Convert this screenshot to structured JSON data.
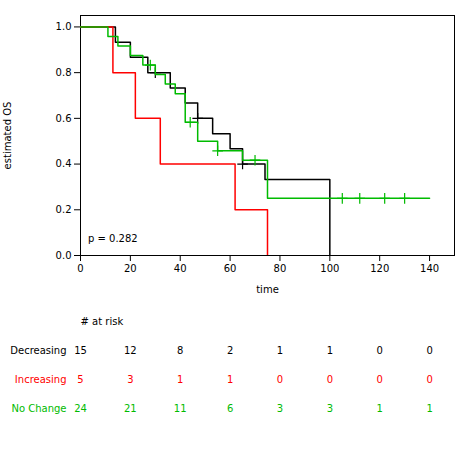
{
  "chart_data": {
    "type": "step",
    "ylabel": "estimated OS",
    "xlabel": "time",
    "xlim": [
      0,
      150
    ],
    "ylim": [
      0,
      1.05
    ],
    "xticks": [
      0,
      20,
      40,
      60,
      80,
      100,
      120,
      140
    ],
    "yticks": [
      {
        "value": 0,
        "label": "0.0"
      },
      0.2,
      0.4,
      0.6,
      0.8,
      {
        "value": 1,
        "label": "1.0"
      }
    ],
    "grid": false,
    "series": [
      {
        "name": "Decreasing",
        "color": "#000000",
        "marker": "plus",
        "x": [
          0,
          11,
          14,
          18,
          20,
          24,
          27,
          30,
          36,
          40,
          42,
          44,
          47,
          50,
          53,
          56,
          60,
          63,
          65,
          68,
          74,
          100,
          100
        ],
        "values": [
          1.0,
          1.0,
          0.933,
          0.933,
          0.867,
          0.867,
          0.8,
          0.8,
          0.733,
          0.733,
          0.667,
          0.667,
          0.6,
          0.6,
          0.533,
          0.533,
          0.467,
          0.467,
          0.4,
          0.4,
          0.333,
          0.333,
          0.0
        ],
        "censor_x": [
          30,
          47,
          65
        ],
        "censor_y": [
          0.8,
          0.6,
          0.4
        ]
      },
      {
        "name": "Increasing",
        "color": "#ff0000",
        "marker": "plus",
        "x": [
          0,
          10,
          13,
          19,
          22,
          28,
          32,
          40,
          62,
          75,
          75
        ],
        "values": [
          1.0,
          1.0,
          0.8,
          0.8,
          0.6,
          0.6,
          0.4,
          0.4,
          0.2,
          0.2,
          0.0
        ],
        "censor_x": [],
        "censor_y": []
      },
      {
        "name": "No Change",
        "color": "#00bb00",
        "marker": "plus",
        "x": [
          0,
          9,
          11,
          13,
          15,
          18,
          20,
          22,
          25,
          28,
          30,
          32,
          34,
          36,
          38,
          40,
          42,
          44,
          47,
          50,
          55,
          60,
          65,
          70,
          75,
          103,
          140
        ],
        "values": [
          1.0,
          1.0,
          0.958,
          0.958,
          0.917,
          0.917,
          0.875,
          0.875,
          0.833,
          0.833,
          0.792,
          0.792,
          0.75,
          0.75,
          0.708,
          0.708,
          0.583,
          0.583,
          0.5,
          0.5,
          0.458,
          0.458,
          0.417,
          0.417,
          0.25,
          0.25,
          0.25
        ],
        "censor_x": [
          28,
          44,
          55,
          70,
          105,
          112,
          122,
          130
        ],
        "censor_y": [
          0.833,
          0.583,
          0.458,
          0.417,
          0.25,
          0.25,
          0.25,
          0.25
        ]
      }
    ],
    "annotations": [
      {
        "text": "p = 0.282",
        "x": 3,
        "y": 0.06
      }
    ],
    "risk_table": {
      "label": "# at risk",
      "times": [
        0,
        20,
        40,
        60,
        80,
        100,
        120,
        140
      ],
      "counts": [
        [
          15,
          12,
          8,
          2,
          1,
          1,
          0,
          0
        ],
        [
          5,
          3,
          1,
          1,
          0,
          0,
          0,
          0
        ],
        [
          24,
          21,
          11,
          6,
          3,
          3,
          1,
          1
        ]
      ]
    }
  }
}
